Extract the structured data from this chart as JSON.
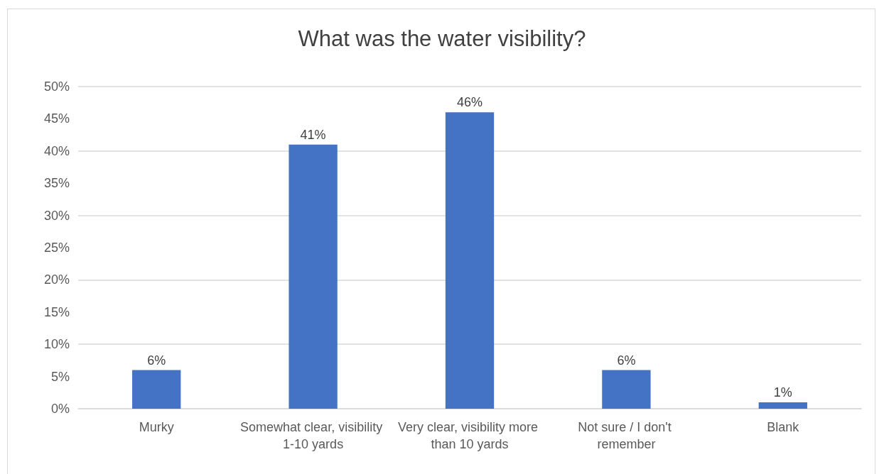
{
  "chart_data": {
    "type": "bar",
    "title": "What was the water visibility?",
    "categories": [
      "Murky",
      "Somewhat clear, visibility 1-10 yards",
      "Very clear, visibility more than 10 yards",
      "Not sure / I don't remember",
      "Blank"
    ],
    "values": [
      6,
      41,
      46,
      6,
      1
    ],
    "value_labels": [
      "6%",
      "41%",
      "46%",
      "6%",
      "1%"
    ],
    "color": "#4472c4",
    "ylim": [
      0,
      50
    ],
    "yticks": [
      {
        "value": 0,
        "label": "0%"
      },
      {
        "value": 5,
        "label": "5%"
      },
      {
        "value": 10,
        "label": "10%"
      },
      {
        "value": 15,
        "label": "15%"
      },
      {
        "value": 20,
        "label": "20%"
      },
      {
        "value": 25,
        "label": "25%"
      },
      {
        "value": 30,
        "label": "30%"
      },
      {
        "value": 35,
        "label": "35%"
      },
      {
        "value": 40,
        "label": "40%"
      },
      {
        "value": 45,
        "label": "45%"
      },
      {
        "value": 50,
        "label": "50%"
      }
    ],
    "grid": "y"
  }
}
